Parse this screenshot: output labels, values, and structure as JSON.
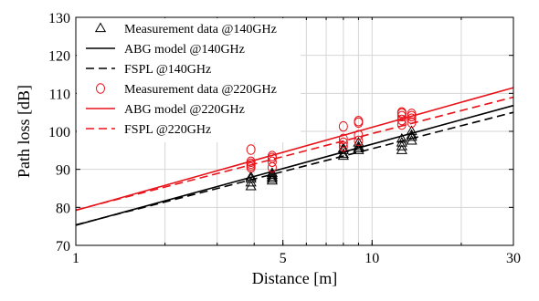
{
  "chart_data": {
    "type": "scatter",
    "title": "",
    "xlabel": "Distance [m]",
    "ylabel": "Path loss [dB]",
    "x_scale": "log",
    "xlim": [
      1,
      30
    ],
    "ylim": [
      70,
      130
    ],
    "xticks": [
      1,
      5,
      10,
      30
    ],
    "xtick_labels": [
      "1",
      "5",
      "10",
      "30"
    ],
    "yticks": [
      70,
      80,
      90,
      100,
      110,
      120,
      130
    ],
    "ytick_labels": [
      "70",
      "80",
      "90",
      "100",
      "110",
      "120",
      "130"
    ],
    "grid": true,
    "legend_position": "top-left",
    "series": [
      {
        "name": "Measurement data @140GHz",
        "kind": "markers",
        "marker": "triangle",
        "color": "#000000",
        "points": [
          [
            3.9,
            85.5
          ],
          [
            3.9,
            86.5
          ],
          [
            3.9,
            87.5
          ],
          [
            3.9,
            88
          ],
          [
            4.6,
            87
          ],
          [
            4.6,
            87.5
          ],
          [
            4.6,
            88
          ],
          [
            4.6,
            88.5
          ],
          [
            4.6,
            89
          ],
          [
            8.0,
            93.5
          ],
          [
            8.0,
            94
          ],
          [
            8.0,
            95
          ],
          [
            8.0,
            95.5
          ],
          [
            9.0,
            95
          ],
          [
            9.0,
            95.5
          ],
          [
            9.0,
            96
          ],
          [
            9.0,
            97
          ],
          [
            12.6,
            95
          ],
          [
            12.6,
            96
          ],
          [
            12.6,
            97
          ],
          [
            12.6,
            98
          ],
          [
            13.6,
            97.5
          ],
          [
            13.6,
            98.5
          ],
          [
            13.6,
            99
          ],
          [
            13.6,
            100
          ]
        ]
      },
      {
        "name": "ABG model @140GHz",
        "kind": "line",
        "dash": "solid",
        "color": "#000000",
        "points": [
          [
            1,
            75.3
          ],
          [
            30,
            106.8
          ]
        ]
      },
      {
        "name": "FSPL @140GHz",
        "kind": "line",
        "dash": "dashed",
        "color": "#000000",
        "points": [
          [
            1,
            75.4
          ],
          [
            30,
            105
          ]
        ]
      },
      {
        "name": "Measurement data @220GHz",
        "kind": "markers",
        "marker": "circle",
        "color": "#e8131a",
        "points": [
          [
            3.9,
            90.5
          ],
          [
            3.9,
            91
          ],
          [
            3.9,
            91.5
          ],
          [
            3.9,
            92
          ],
          [
            3.9,
            95.2
          ],
          [
            4.6,
            90.5
          ],
          [
            4.6,
            92
          ],
          [
            4.6,
            93
          ],
          [
            4.6,
            93.5
          ],
          [
            8.0,
            96
          ],
          [
            8.0,
            97
          ],
          [
            8.0,
            98
          ],
          [
            8.0,
            101.3
          ],
          [
            9.0,
            97.5
          ],
          [
            9.0,
            99
          ],
          [
            9.0,
            102.3
          ],
          [
            9.0,
            102.7
          ],
          [
            12.6,
            101.8
          ],
          [
            12.6,
            103
          ],
          [
            12.6,
            104
          ],
          [
            12.6,
            104.7
          ],
          [
            12.6,
            105
          ],
          [
            13.6,
            102.3
          ],
          [
            13.6,
            103.3
          ],
          [
            13.6,
            104
          ],
          [
            13.6,
            104.6
          ]
        ]
      },
      {
        "name": "ABG model @220GHz",
        "kind": "line",
        "dash": "solid",
        "color": "#e8131a",
        "points": [
          [
            1,
            79.2
          ],
          [
            30,
            111.5
          ]
        ]
      },
      {
        "name": "FSPL @220GHz",
        "kind": "line",
        "dash": "dashed",
        "color": "#e8131a",
        "points": [
          [
            1,
            79.3
          ],
          [
            30,
            109
          ]
        ]
      }
    ]
  }
}
